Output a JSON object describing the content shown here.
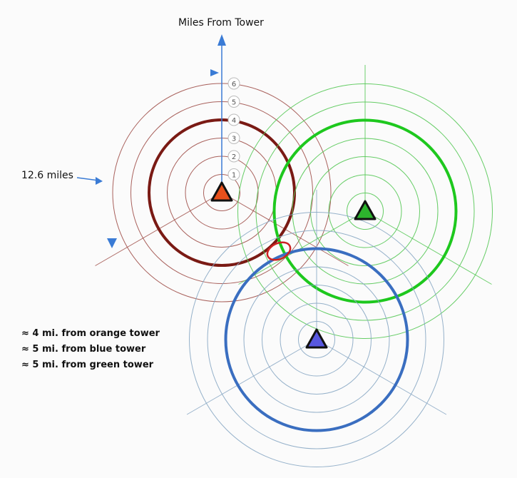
{
  "title": "Miles From Tower",
  "distance_callout": "12.6 miles",
  "scale_numbers": [
    "1",
    "2",
    "3",
    "4",
    "5",
    "6"
  ],
  "notes": [
    "≈ 4 mi. from orange tower",
    "≈ 5 mi. from blue tower",
    "≈ 5 mi. from green tower"
  ],
  "towers": [
    {
      "id": "orange",
      "fill": "#e8501c",
      "ring": "#a0504a",
      "highlight": "#7a1a14",
      "highlight_ring": 4
    },
    {
      "id": "green",
      "fill": "#2db52d",
      "ring": "#55c855",
      "highlight": "#1ec81e",
      "highlight_ring": 5
    },
    {
      "id": "blue",
      "fill": "#5858e0",
      "ring": "#8aa8c4",
      "highlight": "#3a6ec0",
      "highlight_ring": 5
    }
  ],
  "intersection_color": "#cc2222",
  "arrow_color": "#3a7bd5"
}
